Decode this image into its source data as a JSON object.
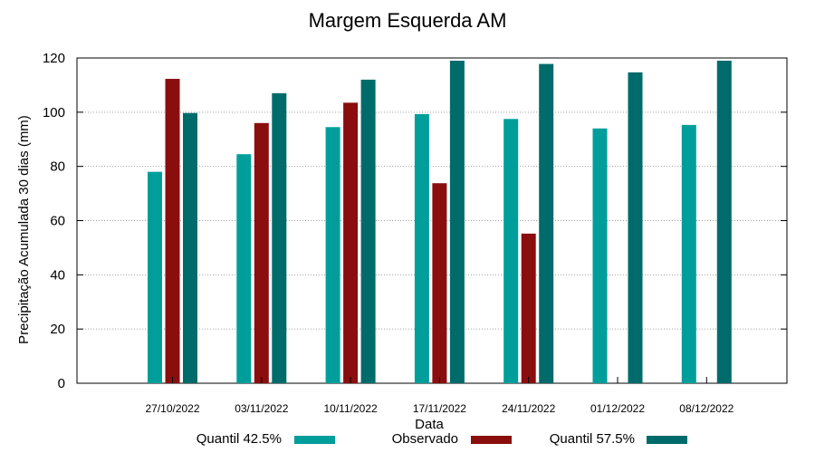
{
  "chart_data": {
    "type": "bar",
    "title": "Margem Esquerda AM",
    "xlabel": "Data",
    "ylabel": "Precipitação Acumulada 30 dias (mm)",
    "ylim": [
      0,
      120
    ],
    "yticks": [
      0,
      20,
      40,
      60,
      80,
      100,
      120
    ],
    "grid": true,
    "legend_position": "bottom",
    "categories": [
      "27/10/2022",
      "03/11/2022",
      "10/11/2022",
      "17/11/2022",
      "24/11/2022",
      "01/12/2022",
      "08/12/2022"
    ],
    "series": [
      {
        "name": "Quantil 42.5%",
        "color": "#009e9b",
        "values": [
          78,
          84.5,
          94.5,
          99.3,
          97.5,
          94,
          95.3
        ]
      },
      {
        "name": "Observado",
        "color": "#8b0e0e",
        "values": [
          112.3,
          96,
          103.5,
          73.8,
          55.2,
          null,
          null
        ]
      },
      {
        "name": "Quantil 57.5%",
        "color": "#006b6b",
        "values": [
          99.7,
          107,
          112,
          119,
          117.8,
          114.7,
          119
        ]
      }
    ]
  }
}
